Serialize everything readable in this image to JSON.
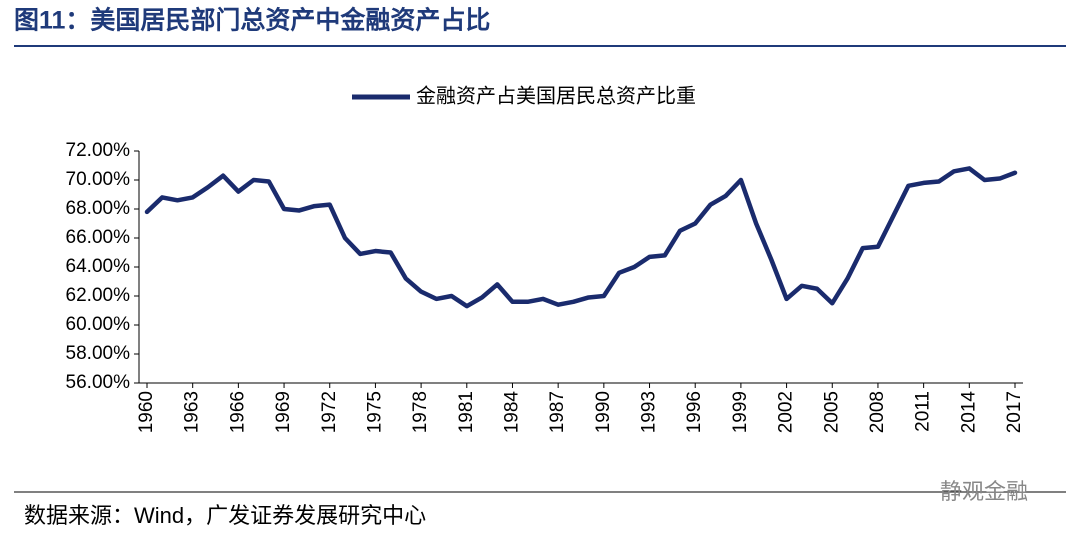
{
  "chart_data": {
    "type": "line",
    "title": "图11：美国居民部门总资产中金融资产占比",
    "source": "数据来源：Wind，广发证券发展研究中心",
    "watermark": "静观金融",
    "legend": "top",
    "x": [
      1960,
      1961,
      1962,
      1963,
      1964,
      1965,
      1966,
      1967,
      1968,
      1969,
      1970,
      1971,
      1972,
      1973,
      1974,
      1975,
      1976,
      1977,
      1978,
      1979,
      1980,
      1981,
      1982,
      1983,
      1984,
      1985,
      1986,
      1987,
      1988,
      1989,
      1990,
      1991,
      1992,
      1993,
      1994,
      1995,
      1996,
      1997,
      1998,
      1999,
      2000,
      2001,
      2002,
      2003,
      2004,
      2005,
      2006,
      2007,
      2008,
      2009,
      2010,
      2011,
      2012,
      2013,
      2014,
      2015,
      2016,
      2017
    ],
    "series": [
      {
        "name": "金融资产占美国居民总资产比重",
        "color": "#1a2b6d",
        "values": [
          67.8,
          68.8,
          68.6,
          68.8,
          69.5,
          70.3,
          69.2,
          70.0,
          69.9,
          68.0,
          67.9,
          68.2,
          68.3,
          66.0,
          64.9,
          65.1,
          65.0,
          63.2,
          62.3,
          61.8,
          62.0,
          61.3,
          61.9,
          62.8,
          61.6,
          61.6,
          61.8,
          61.4,
          61.6,
          61.9,
          62.0,
          63.6,
          64.0,
          64.7,
          64.8,
          66.5,
          67.0,
          68.3,
          68.9,
          70.0,
          67.0,
          64.5,
          61.8,
          62.7,
          62.5,
          61.5,
          63.2,
          65.3,
          65.4,
          67.5,
          69.6,
          69.8,
          69.9,
          70.6,
          70.8,
          70.0,
          70.1,
          70.5
        ]
      }
    ],
    "xlim": [
      1960,
      2017
    ],
    "xticks": [
      1960,
      1963,
      1966,
      1969,
      1972,
      1975,
      1978,
      1981,
      1984,
      1987,
      1990,
      1993,
      1996,
      1999,
      2002,
      2005,
      2008,
      2011,
      2014,
      2017
    ],
    "ylim": [
      56,
      72
    ],
    "yticks": [
      {
        "value": 56,
        "label": "56.00%"
      },
      {
        "value": 58,
        "label": "58.00%"
      },
      {
        "value": 60,
        "label": "60.00%"
      },
      {
        "value": 62,
        "label": "62.00%"
      },
      {
        "value": 64,
        "label": "64.00%"
      },
      {
        "value": 66,
        "label": "66.00%"
      },
      {
        "value": 68,
        "label": "68.00%"
      },
      {
        "value": 70,
        "label": "70.00%"
      },
      {
        "value": 72,
        "label": "72.00%"
      }
    ]
  }
}
